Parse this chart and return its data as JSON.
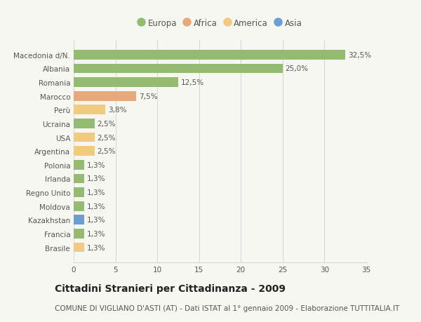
{
  "categories": [
    "Brasile",
    "Francia",
    "Kazakhstan",
    "Moldova",
    "Regno Unito",
    "Irlanda",
    "Polonia",
    "Argentina",
    "USA",
    "Ucraina",
    "Perù",
    "Marocco",
    "Romania",
    "Albania",
    "Macedonia d/N."
  ],
  "values": [
    1.3,
    1.3,
    1.3,
    1.3,
    1.3,
    1.3,
    1.3,
    2.5,
    2.5,
    2.5,
    3.8,
    7.5,
    12.5,
    25.0,
    32.5
  ],
  "labels": [
    "1,3%",
    "1,3%",
    "1,3%",
    "1,3%",
    "1,3%",
    "1,3%",
    "1,3%",
    "2,5%",
    "2,5%",
    "2,5%",
    "3,8%",
    "7,5%",
    "12,5%",
    "25,0%",
    "32,5%"
  ],
  "colors": [
    "#f2ca7e",
    "#93bc72",
    "#6b9fd4",
    "#93bc72",
    "#93bc72",
    "#93bc72",
    "#93bc72",
    "#f2ca7e",
    "#f2ca7e",
    "#93bc72",
    "#f2ca7e",
    "#e8a87c",
    "#93bc72",
    "#93bc72",
    "#93bc72"
  ],
  "legend": [
    {
      "label": "Europa",
      "color": "#93bc72"
    },
    {
      "label": "Africa",
      "color": "#e8a87c"
    },
    {
      "label": "America",
      "color": "#f2ca7e"
    },
    {
      "label": "Asia",
      "color": "#6b9fd4"
    }
  ],
  "title": "Cittadini Stranieri per Cittadinanza - 2009",
  "subtitle": "COMUNE DI VIGLIANO D'ASTI (AT) - Dati ISTAT al 1° gennaio 2009 - Elaborazione TUTTITALIA.IT",
  "xlim": [
    0,
    35
  ],
  "xticks": [
    0,
    5,
    10,
    15,
    20,
    25,
    30,
    35
  ],
  "background_color": "#f7f7f2",
  "bar_height": 0.7,
  "title_fontsize": 10,
  "subtitle_fontsize": 7.5,
  "label_fontsize": 7.5,
  "tick_fontsize": 7.5,
  "legend_fontsize": 8.5,
  "grid_color": "#d8d8d8",
  "text_color": "#555555",
  "title_color": "#222222"
}
